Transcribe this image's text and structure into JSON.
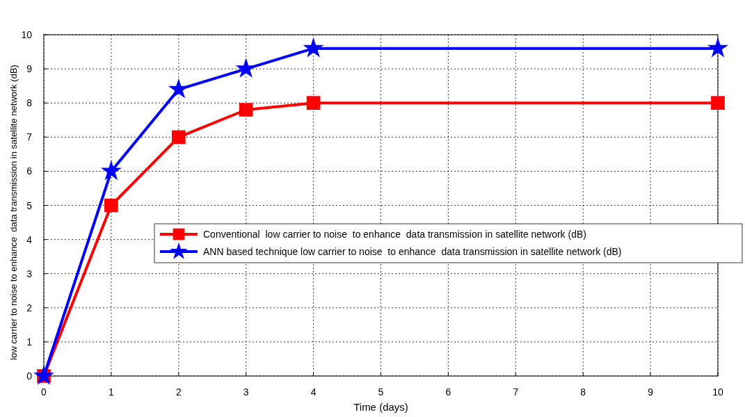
{
  "chart_data": {
    "type": "line",
    "xlabel": "Time (days)",
    "ylabel": "low carrier to noise to enhance  data transmission in satellite network (dB)",
    "x": [
      0,
      1,
      2,
      3,
      4,
      10
    ],
    "xlim": [
      0,
      10
    ],
    "xticks": [
      0,
      1,
      2,
      3,
      4,
      5,
      6,
      7,
      8,
      9,
      10
    ],
    "ylim": [
      0,
      10
    ],
    "yticks": [
      0,
      1,
      2,
      3,
      4,
      5,
      6,
      7,
      8,
      9,
      10
    ],
    "grid": true,
    "legend": "right",
    "line_style": "solid",
    "series": [
      {
        "name": "Conventional  low carrier to noise  to enhance  data transmission in satellite network (dB)",
        "color": "#ff0000",
        "marker": "square",
        "values": [
          0,
          5,
          7,
          7.8,
          8,
          8
        ]
      },
      {
        "name": "ANN based technique low carrier to noise  to enhance  data transmission in satellite network (dB)",
        "color": "#0000ff",
        "marker": "star",
        "values": [
          0,
          6,
          8.4,
          9,
          9.6,
          9.6
        ]
      }
    ]
  }
}
